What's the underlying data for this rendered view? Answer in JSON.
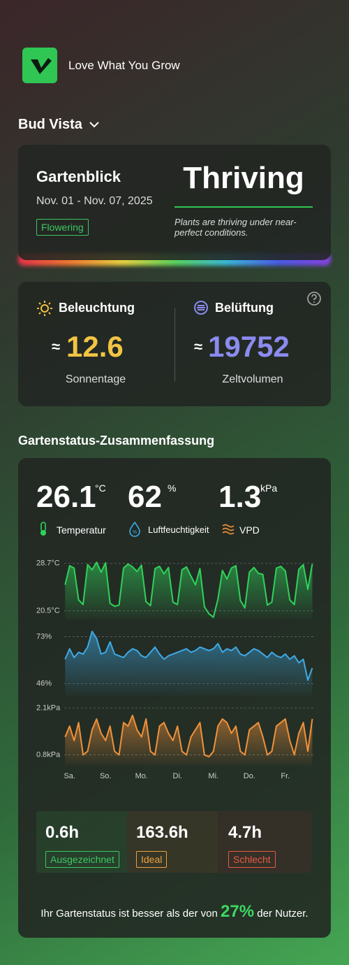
{
  "app": {
    "tagline": "Love What You Grow"
  },
  "garden": {
    "name": "Bud Vista"
  },
  "overview": {
    "title": "Gartenblick",
    "date_range": "Nov. 01 - Nov. 07, 2025",
    "stage": "Flowering",
    "status": "Thriving",
    "status_description": "Plants are thriving under near-perfect conditions."
  },
  "environment": {
    "light": {
      "title": "Beleuchtung",
      "approx": "≈",
      "value": 12.6,
      "unit": "Sonnentage"
    },
    "ventilation": {
      "title": "Belüftung",
      "approx": "≈",
      "value": 19752,
      "unit": "Zeltvolumen"
    }
  },
  "summary": {
    "title": "Gartenstatus-Zusammenfassung",
    "metrics": [
      {
        "value": 26.1,
        "unit": "°C",
        "label": "Temperatur"
      },
      {
        "value": 62,
        "unit": "%",
        "label": "Luftfeuchtigkeit"
      },
      {
        "value": 1.3,
        "unit": "kPa",
        "label": "VPD"
      }
    ],
    "hours": [
      {
        "value": "0.6h",
        "label": "Ausgezeichnet"
      },
      {
        "value": "163.6h",
        "label": "Ideal"
      },
      {
        "value": "4.7h",
        "label": "Schlecht"
      }
    ],
    "footer": {
      "before": "Ihr Gartenstatus ist besser als der von",
      "percent": "27%",
      "after": "der Nutzer."
    }
  },
  "chart_data": [
    {
      "type": "line",
      "color": "#2fd25a",
      "x": [
        -0.125,
        0,
        0.125,
        0.25,
        0.375,
        0.5,
        0.625,
        0.75,
        0.875,
        1,
        1.125,
        1.25,
        1.375,
        1.5,
        1.625,
        1.75,
        1.875,
        2,
        2.125,
        2.25,
        2.375,
        2.5,
        2.625,
        2.75,
        2.875,
        3,
        3.125,
        3.25,
        3.375,
        3.5,
        3.625,
        3.75,
        3.875,
        4,
        4.125,
        4.25,
        4.375,
        4.5,
        4.625,
        4.75,
        4.875,
        5,
        5.125,
        5.25,
        5.375,
        5.5,
        5.625,
        5.75,
        5.875,
        6,
        6.125,
        6.25,
        6.375,
        6.5,
        6.625,
        6.75
      ],
      "values": [
        25.0,
        28.3,
        27.9,
        22.4,
        21.6,
        28.5,
        27.6,
        28.9,
        27.2,
        28.8,
        21.8,
        21.3,
        21.5,
        27.9,
        28.6,
        28.1,
        27.3,
        28.4,
        22.1,
        21.4,
        27.8,
        28.2,
        26.9,
        28.0,
        22.0,
        21.6,
        27.6,
        28.1,
        26.5,
        25.0,
        27.8,
        21.2,
        20.0,
        19.4,
        22.5,
        27.5,
        26.0,
        27.9,
        28.3,
        22.3,
        21.0,
        27.2,
        28.0,
        27.0,
        26.8,
        21.5,
        22.0,
        27.9,
        28.2,
        27.4,
        22.4,
        21.6,
        27.7,
        28.5,
        24.2,
        28.6
      ],
      "xlim": [
        -0.15,
        6.8
      ],
      "ylim": [
        19,
        30
      ],
      "yticks": [
        {
          "value": 28.7,
          "label": "28.7°C"
        },
        {
          "value": 20.5,
          "label": "20.5°C"
        }
      ]
    },
    {
      "type": "line",
      "color": "#3ea9e6",
      "x": [
        -0.125,
        0,
        0.125,
        0.25,
        0.375,
        0.5,
        0.625,
        0.75,
        0.875,
        1,
        1.125,
        1.25,
        1.375,
        1.5,
        1.625,
        1.75,
        1.875,
        2,
        2.125,
        2.25,
        2.375,
        2.5,
        2.625,
        2.75,
        2.875,
        3,
        3.125,
        3.25,
        3.375,
        3.5,
        3.625,
        3.75,
        3.875,
        4,
        4.125,
        4.25,
        4.375,
        4.5,
        4.625,
        4.75,
        4.875,
        5,
        5.125,
        5.25,
        5.375,
        5.5,
        5.625,
        5.75,
        5.875,
        6,
        6.125,
        6.25,
        6.375,
        6.5,
        6.625,
        6.75
      ],
      "values": [
        60,
        66,
        61,
        64,
        63,
        67,
        76,
        72,
        63,
        64,
        70,
        63,
        62,
        61,
        64,
        66,
        65,
        62,
        61,
        64,
        67,
        63,
        60,
        62,
        63,
        64,
        65,
        66,
        64,
        65,
        67,
        66,
        65,
        66,
        69,
        64,
        66,
        65,
        67,
        63,
        62,
        64,
        66,
        65,
        63,
        61,
        64,
        62,
        61,
        63,
        60,
        62,
        58,
        60,
        48,
        55
      ],
      "xlim": [
        -0.15,
        6.8
      ],
      "ylim": [
        39,
        78
      ],
      "yticks": [
        {
          "value": 73,
          "label": "73%"
        },
        {
          "value": 46,
          "label": "46%"
        }
      ]
    },
    {
      "type": "line",
      "color": "#f0913a",
      "x": [
        -0.125,
        0,
        0.125,
        0.25,
        0.375,
        0.5,
        0.625,
        0.75,
        0.875,
        1,
        1.125,
        1.25,
        1.375,
        1.5,
        1.625,
        1.75,
        1.875,
        2,
        2.125,
        2.25,
        2.375,
        2.5,
        2.625,
        2.75,
        2.875,
        3,
        3.125,
        3.25,
        3.375,
        3.5,
        3.625,
        3.75,
        3.875,
        4,
        4.125,
        4.25,
        4.375,
        4.5,
        4.625,
        4.75,
        4.875,
        5,
        5.125,
        5.25,
        5.375,
        5.5,
        5.625,
        5.75,
        5.875,
        6,
        6.125,
        6.25,
        6.375,
        6.5,
        6.625,
        6.75
      ],
      "values": [
        1.3,
        1.6,
        1.2,
        1.7,
        0.8,
        0.9,
        1.5,
        1.8,
        1.4,
        1.2,
        1.6,
        0.9,
        0.8,
        1.7,
        1.6,
        1.9,
        1.5,
        1.3,
        1.8,
        0.9,
        0.8,
        1.6,
        1.7,
        1.4,
        1.2,
        1.6,
        0.9,
        0.8,
        1.3,
        1.5,
        1.7,
        0.8,
        0.75,
        0.9,
        1.6,
        1.8,
        1.7,
        1.4,
        1.6,
        0.9,
        0.8,
        1.5,
        1.6,
        1.7,
        1.3,
        0.8,
        0.9,
        1.6,
        1.7,
        1.8,
        1.2,
        0.8,
        1.4,
        1.7,
        0.9,
        1.8
      ],
      "xlim": [
        -0.15,
        6.8
      ],
      "ylim": [
        0.5,
        2.25
      ],
      "yticks": [
        {
          "value": 2.1,
          "label": "2.1kPa"
        },
        {
          "value": 0.8,
          "label": "0.8kPa"
        }
      ],
      "xticks": [
        {
          "value": 0,
          "label": "Sa."
        },
        {
          "value": 1,
          "label": "So."
        },
        {
          "value": 2,
          "label": "Mo."
        },
        {
          "value": 3,
          "label": "Di."
        },
        {
          "value": 4,
          "label": "Mi."
        },
        {
          "value": 5,
          "label": "Do."
        },
        {
          "value": 6,
          "label": "Fr."
        }
      ]
    }
  ]
}
